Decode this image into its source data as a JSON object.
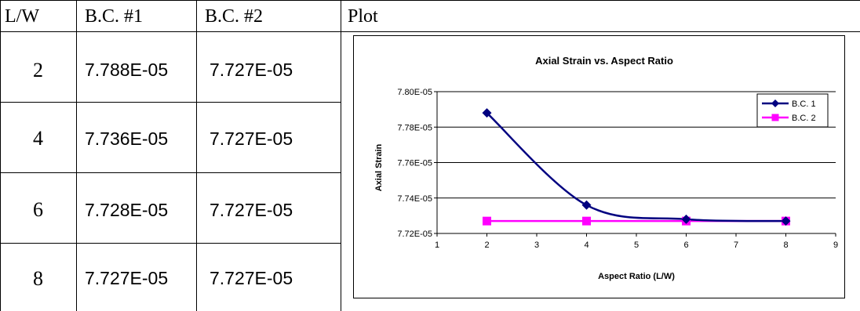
{
  "table": {
    "headers": [
      "L/W",
      "B.C. #1",
      "B.C. #2",
      "Plot"
    ],
    "rows": [
      {
        "lw": "2",
        "bc1": "7.788E-05",
        "bc2": "7.727E-05"
      },
      {
        "lw": "4",
        "bc1": "7.736E-05",
        "bc2": "7.727E-05"
      },
      {
        "lw": "6",
        "bc1": "7.728E-05",
        "bc2": "7.727E-05"
      },
      {
        "lw": "8",
        "bc1": "7.727E-05",
        "bc2": "7.727E-05"
      }
    ]
  },
  "chart_data": {
    "type": "line",
    "title": "Axial Strain vs. Aspect Ratio",
    "xlabel": "Aspect Ratio (L/W)",
    "ylabel": "Axial Strain",
    "x": [
      2,
      4,
      6,
      8
    ],
    "series": [
      {
        "name": "B.C. 1",
        "values": [
          7.788e-05,
          7.736e-05,
          7.728e-05,
          7.727e-05
        ],
        "color": "#000080",
        "marker": "diamond"
      },
      {
        "name": "B.C. 2",
        "values": [
          7.727e-05,
          7.727e-05,
          7.727e-05,
          7.727e-05
        ],
        "color": "#ff00ff",
        "marker": "square"
      }
    ],
    "xlim": [
      1,
      9
    ],
    "xticks": [
      "1",
      "2",
      "3",
      "4",
      "5",
      "6",
      "7",
      "8",
      "9"
    ],
    "ylim": [
      7.72e-05,
      7.8e-05
    ],
    "yticks": [
      "7.72E-05",
      "7.74E-05",
      "7.76E-05",
      "7.78E-05",
      "7.80E-05"
    ],
    "grid": "horizontal",
    "legend": "top-right",
    "smooth": true
  }
}
